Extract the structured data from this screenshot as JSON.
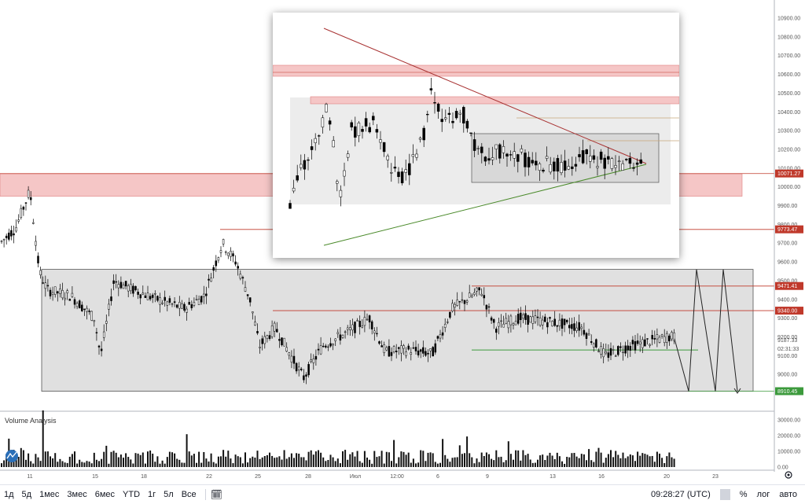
{
  "chart_data": {
    "type": "candlestick",
    "price_axis": {
      "ticks": [
        "10900.00",
        "10800.00",
        "10700.00",
        "10600.00",
        "10500.00",
        "10400.00",
        "10300.00",
        "10200.00",
        "10100.00",
        "10000.00",
        "9900.00",
        "9800.00",
        "9700.00",
        "9600.00",
        "9500.00",
        "9400.00",
        "9300.00",
        "9200.00",
        "9100.00",
        "9000.00",
        "8900.00"
      ],
      "ylim": [
        8890,
        10980
      ]
    },
    "price_badges": [
      {
        "value": "10071.27",
        "color": "#c0392b"
      },
      {
        "value": "9773.47",
        "color": "#c0392b"
      },
      {
        "value": "9471.41",
        "color": "#c0392b"
      },
      {
        "value": "9340.00",
        "color": "#c0392b"
      },
      {
        "value": "8910.45",
        "color": "#3c9a3c"
      }
    ],
    "last_price": "9187.33",
    "countdown": "02:31:33",
    "time_axis": [
      "11",
      "15",
      "18",
      "22",
      "25",
      "28",
      "Июл",
      "12:00",
      "6",
      "9",
      "13",
      "16",
      "20",
      "23"
    ],
    "volume_axis": [
      "30000.00",
      "20000.00",
      "10000.00",
      "0.00"
    ],
    "volume_label": "Volume Analysis",
    "zones": [
      {
        "from": 9950,
        "to": 10070
      },
      {
        "from": 9450,
        "to": 9475
      },
      {
        "from": 9305,
        "to": 9340
      }
    ],
    "range_box": {
      "from": 8910,
      "to": 9560
    },
    "support_level": 9130,
    "resistance_level": 9773
  },
  "bottombar": {
    "timeframes": [
      "1д",
      "5д",
      "1мес",
      "3мес",
      "6мес",
      "YTD",
      "1г",
      "5л",
      "Все"
    ],
    "clock": "09:28:27 (UTC)",
    "percent": "%",
    "log": "лог",
    "auto": "авто"
  },
  "colors": {
    "zone": "#f5c6c6",
    "zone_border": "#e08080",
    "box": "#e0e0e0",
    "candle": "#000000",
    "support": "#3c9a3c",
    "resistance": "#c0392b",
    "trend_down": "#a83232",
    "trend_up": "#4a8a2a"
  }
}
